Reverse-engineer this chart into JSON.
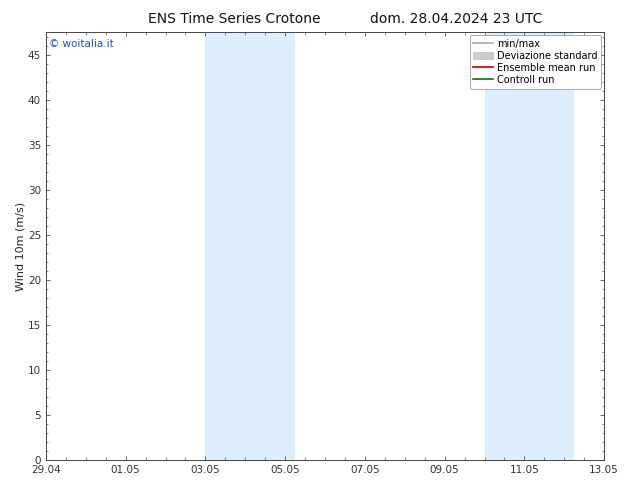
{
  "title_left": "ENS Time Series Crotone",
  "title_right": "dom. 28.04.2024 23 UTC",
  "ylabel": "Wind 10m (m/s)",
  "watermark": "© woitalia.it",
  "ylim": [
    0,
    47.5
  ],
  "yticks": [
    0,
    5,
    10,
    15,
    20,
    25,
    30,
    35,
    40,
    45
  ],
  "background_color": "#ffffff",
  "plot_bg_color": "#ffffff",
  "shaded_regions": [
    {
      "xstart": 4.0,
      "xend": 6.25,
      "color": "#ddeeff"
    },
    {
      "xstart": 11.0,
      "xend": 13.25,
      "color": "#ddeeff"
    }
  ],
  "legend_entries": [
    {
      "label": "min/max",
      "color": "#aaaaaa",
      "lw": 1.2,
      "type": "line"
    },
    {
      "label": "Deviazione standard",
      "color": "#cccccc",
      "lw": 5,
      "type": "patch"
    },
    {
      "label": "Ensemble mean run",
      "color": "#cc0000",
      "lw": 1.2,
      "type": "line"
    },
    {
      "label": "Controll run",
      "color": "#007700",
      "lw": 1.2,
      "type": "line"
    }
  ],
  "xtick_labels": [
    "29.04",
    "01.05",
    "03.05",
    "05.05",
    "07.05",
    "09.05",
    "11.05",
    "13.05"
  ],
  "xtick_positions": [
    0,
    2,
    4,
    6,
    8,
    10,
    12,
    14
  ],
  "xlim": [
    0,
    14
  ],
  "title_fontsize": 10,
  "axis_fontsize": 8,
  "tick_fontsize": 7.5,
  "legend_fontsize": 7,
  "watermark_color": "#1155bb",
  "border_color": "#444444",
  "tick_color": "#333333"
}
